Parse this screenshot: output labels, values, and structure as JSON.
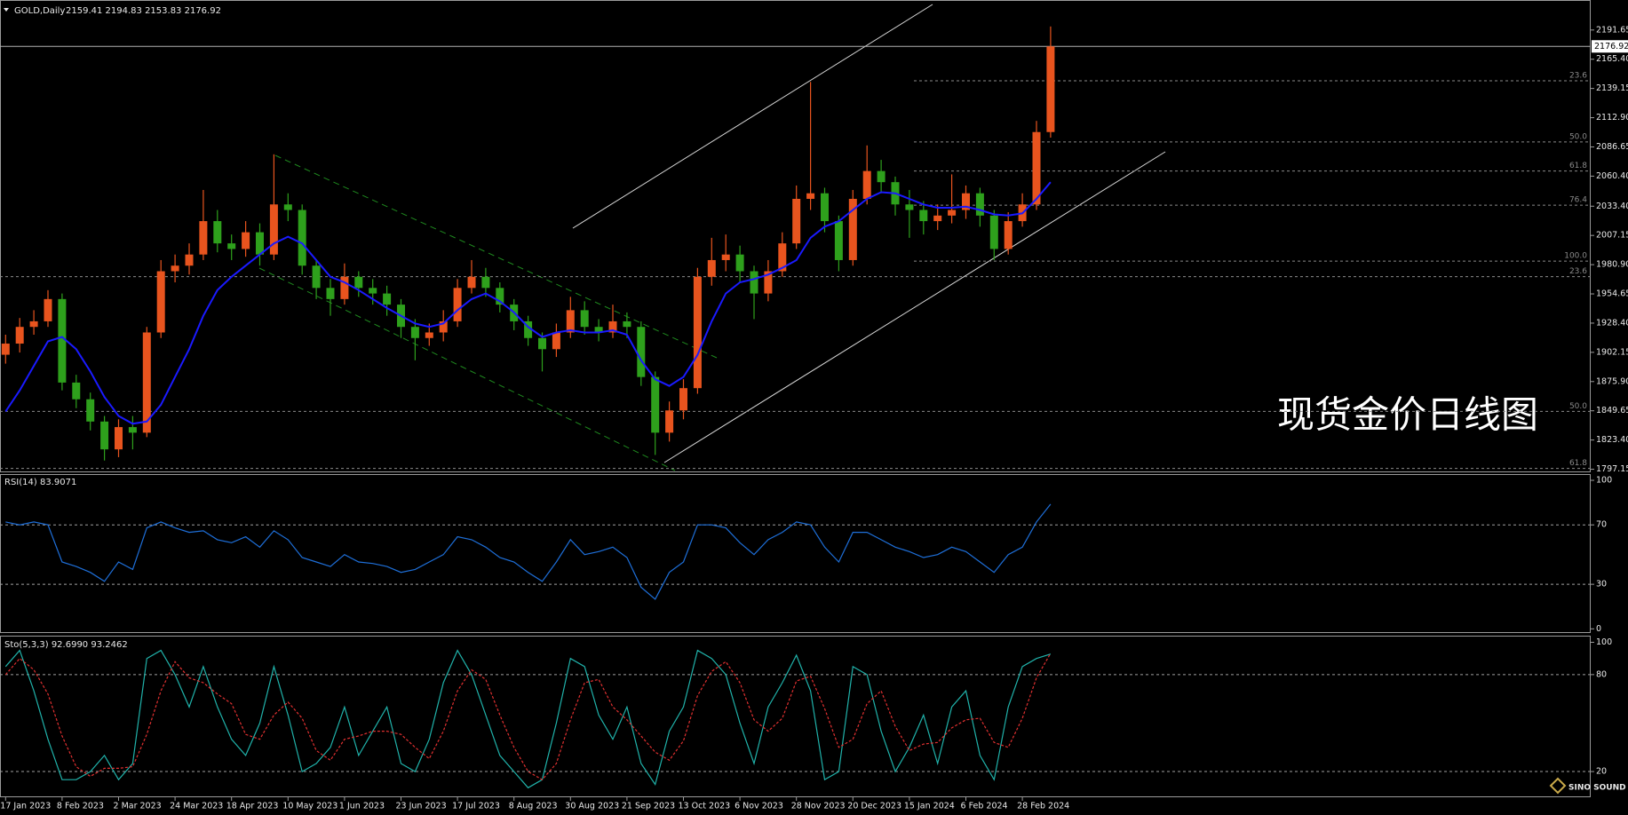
{
  "chart_data": [
    {
      "type": "candlestick",
      "title": "GOLD,Daily",
      "ohlc_label": "2159.41 2194.83 2153.83 2176.92",
      "annotation": "现货金价日线图",
      "up_color": "#e8541e",
      "down_color": "#2ea01c",
      "categories": [
        "17 Jan 2023",
        null,
        null,
        null,
        "8 Feb 2023",
        null,
        null,
        null,
        "2 Mar 2023",
        null,
        null,
        null,
        "24 Mar 2023",
        null,
        null,
        null,
        "18 Apr 2023",
        null,
        null,
        null,
        "10 May 2023",
        null,
        null,
        null,
        "1 Jun 2023",
        null,
        null,
        null,
        "23 Jun 2023",
        null,
        null,
        null,
        "17 Jul 2023",
        null,
        null,
        null,
        "8 Aug 2023",
        null,
        null,
        null,
        "30 Aug 2023",
        null,
        null,
        null,
        "21 Sep 2023",
        null,
        null,
        null,
        "13 Oct 2023",
        null,
        null,
        null,
        "6 Nov 2023",
        null,
        null,
        null,
        "28 Nov 2023",
        null,
        null,
        null,
        "20 Dec 2023",
        null,
        null,
        null,
        "15 Jan 2024",
        null,
        null,
        null,
        "6 Feb 2024",
        null,
        null,
        null,
        "28 Feb 2024",
        null,
        null
      ],
      "open": [
        1900,
        1910,
        1925,
        1930,
        1950,
        1875,
        1860,
        1840,
        1815,
        1835,
        1830,
        1920,
        1975,
        1980,
        1990,
        2020,
        2000,
        1995,
        2010,
        1990,
        2035,
        2030,
        1980,
        1960,
        1950,
        1970,
        1960,
        1955,
        1945,
        1925,
        1915,
        1920,
        1930,
        1960,
        1970,
        1960,
        1945,
        1930,
        1915,
        1905,
        1920,
        1940,
        1925,
        1920,
        1930,
        1925,
        1880,
        1830,
        1850,
        1870,
        1970,
        1985,
        1990,
        1975,
        1955,
        1975,
        2000,
        2040,
        2045,
        2020,
        1985,
        2040,
        2065,
        2055,
        2035,
        2030,
        2020,
        2025,
        2030,
        2045,
        2025,
        1995,
        2020,
        2035,
        2100
      ],
      "high": [
        1918,
        1933,
        1940,
        1958,
        1955,
        1882,
        1866,
        1845,
        1842,
        1845,
        1925,
        1985,
        1990,
        2000,
        2048,
        2030,
        2008,
        2020,
        2018,
        2080,
        2045,
        2035,
        1985,
        1968,
        1982,
        1975,
        1968,
        1962,
        1950,
        1932,
        1928,
        1940,
        1968,
        1985,
        1978,
        1965,
        1950,
        1935,
        1920,
        1928,
        1952,
        1948,
        1932,
        1945,
        1938,
        1930,
        1885,
        1858,
        1878,
        1978,
        2005,
        2008,
        1998,
        1980,
        1985,
        2010,
        2052,
        2145,
        2050,
        2025,
        2048,
        2088,
        2075,
        2060,
        2048,
        2038,
        2035,
        2062,
        2052,
        2050,
        2030,
        2028,
        2045,
        2110,
        2194.83
      ],
      "low": [
        1892,
        1902,
        1918,
        1925,
        1868,
        1852,
        1832,
        1805,
        1808,
        1815,
        1826,
        1915,
        1965,
        1972,
        1985,
        1992,
        1985,
        1988,
        1980,
        1985,
        2020,
        1972,
        1950,
        1935,
        1945,
        1952,
        1945,
        1935,
        1915,
        1895,
        1908,
        1912,
        1925,
        1955,
        1952,
        1938,
        1922,
        1908,
        1885,
        1898,
        1915,
        1918,
        1912,
        1915,
        1915,
        1872,
        1810,
        1822,
        1842,
        1865,
        1962,
        1975,
        1965,
        1932,
        1948,
        1970,
        1995,
        2030,
        2010,
        1975,
        1980,
        2035,
        2045,
        2025,
        2005,
        2008,
        2012,
        2018,
        2022,
        2015,
        1985,
        1990,
        2015,
        2030,
        2095
      ],
      "close": [
        1910,
        1925,
        1930,
        1950,
        1875,
        1860,
        1840,
        1815,
        1835,
        1830,
        1920,
        1975,
        1980,
        1990,
        2020,
        2000,
        1995,
        2010,
        1990,
        2035,
        2030,
        1980,
        1960,
        1950,
        1970,
        1960,
        1955,
        1945,
        1925,
        1915,
        1920,
        1930,
        1960,
        1970,
        1960,
        1945,
        1930,
        1915,
        1905,
        1920,
        1940,
        1925,
        1920,
        1930,
        1925,
        1880,
        1830,
        1850,
        1870,
        1970,
        1985,
        1990,
        1975,
        1955,
        1975,
        2000,
        2040,
        2045,
        2020,
        1985,
        2040,
        2065,
        2055,
        2035,
        2030,
        2020,
        2025,
        2030,
        2045,
        2025,
        1995,
        2020,
        2035,
        2100,
        2176.92
      ],
      "ma": {
        "color": "#1a1aff",
        "values": [
          1849,
          1868,
          1890,
          1912,
          1916,
          1905,
          1885,
          1862,
          1845,
          1838,
          1840,
          1855,
          1880,
          1905,
          1935,
          1958,
          1970,
          1980,
          1990,
          2000,
          2006,
          2000,
          1985,
          1970,
          1965,
          1958,
          1950,
          1942,
          1935,
          1928,
          1925,
          1928,
          1940,
          1950,
          1955,
          1948,
          1938,
          1925,
          1916,
          1920,
          1922,
          1920,
          1920,
          1922,
          1918,
          1895,
          1878,
          1872,
          1880,
          1900,
          1930,
          1955,
          1965,
          1968,
          1972,
          1978,
          1985,
          2005,
          2015,
          2020,
          2030,
          2040,
          2046,
          2045,
          2040,
          2035,
          2032,
          2032,
          2033,
          2030,
          2026,
          2025,
          2027,
          2040,
          2055
        ]
      },
      "ylim": [
        1794.4,
        2218.6
      ],
      "yticks": [
        2191.65,
        {
          "value": 2165.4,
          "label": "2165.40"
        },
        2139.15,
        {
          "value": 2112.9,
          "label": "2112.90"
        },
        2086.65,
        {
          "value": 2060.4,
          "label": "2060.40"
        },
        {
          "value": 2033.4,
          "label": "2033.40"
        },
        2007.15,
        {
          "value": 1980.9,
          "label": "1980.90"
        },
        1954.65,
        {
          "value": 1928.4,
          "label": "1928.40"
        },
        1902.15,
        {
          "value": 1875.9,
          "label": "1875.90"
        },
        1849.65,
        {
          "value": 1823.4,
          "label": "1823.40"
        },
        1797.15
      ],
      "last_price": 2176.92,
      "fib_recent": [
        {
          "value": 2146.0,
          "label": "23.6"
        },
        {
          "value": 2091.1,
          "label": "50.0"
        },
        {
          "value": 2065.0,
          "label": "61.8"
        },
        {
          "value": 2034.3,
          "label": "76.4"
        },
        {
          "value": 1984.1,
          "label": "100.0"
        }
      ],
      "fib_wide": [
        {
          "value": 1970.1,
          "label": "23.6"
        },
        {
          "value": 1849.1,
          "label": "50.0"
        },
        {
          "value": 1797.9,
          "label": "61.8"
        }
      ]
    },
    {
      "type": "line",
      "title": "RSI(14) 83.9071",
      "color": "#1e6fd9",
      "values": [
        72,
        70,
        72,
        70,
        45,
        42,
        38,
        32,
        45,
        40,
        68,
        72,
        68,
        65,
        66,
        60,
        58,
        62,
        55,
        66,
        60,
        48,
        45,
        42,
        50,
        45,
        44,
        42,
        38,
        40,
        45,
        50,
        62,
        60,
        55,
        48,
        45,
        38,
        32,
        45,
        60,
        50,
        52,
        55,
        48,
        28,
        20,
        38,
        45,
        70,
        70,
        68,
        58,
        50,
        60,
        65,
        72,
        70,
        55,
        45,
        65,
        65,
        60,
        55,
        52,
        48,
        50,
        55,
        52,
        45,
        38,
        50,
        55,
        72,
        83.9071
      ],
      "ylim": [
        -2.8,
        104.2
      ],
      "yticks": [
        0,
        30,
        70,
        100
      ],
      "levels": [
        30,
        70
      ]
    },
    {
      "type": "line",
      "title": "Sto(5,3,3) 92.6990 93.2462",
      "series": [
        {
          "color": "#20b2aa",
          "style": "solid",
          "values": [
            85,
            95,
            70,
            40,
            15,
            15,
            20,
            30,
            15,
            25,
            90,
            95,
            80,
            60,
            85,
            60,
            40,
            30,
            50,
            85,
            55,
            20,
            25,
            35,
            60,
            30,
            45,
            60,
            25,
            20,
            40,
            75,
            95,
            80,
            55,
            30,
            20,
            10,
            15,
            50,
            90,
            85,
            55,
            40,
            60,
            25,
            12,
            45,
            60,
            95,
            90,
            80,
            50,
            25,
            60,
            75,
            92,
            70,
            15,
            20,
            85,
            80,
            45,
            20,
            35,
            55,
            25,
            60,
            70,
            30,
            15,
            60,
            85,
            90,
            92.699
          ]
        },
        {
          "color": "#e03030",
          "style": "dashed",
          "values": [
            80,
            90,
            83,
            68,
            42,
            23,
            17,
            22,
            22,
            23,
            43,
            70,
            88,
            78,
            75,
            68,
            62,
            43,
            40,
            55,
            63,
            53,
            33,
            27,
            40,
            42,
            45,
            45,
            43,
            35,
            28,
            45,
            70,
            83,
            77,
            55,
            35,
            20,
            15,
            25,
            52,
            75,
            77,
            60,
            52,
            42,
            32,
            27,
            39,
            67,
            82,
            88,
            75,
            52,
            45,
            53,
            76,
            79,
            59,
            35,
            40,
            62,
            70,
            48,
            33,
            37,
            38,
            47,
            52,
            53,
            38,
            35,
            53,
            78,
            93.2462
          ]
        }
      ],
      "ylim": [
        4.1,
        104.1
      ],
      "yticks": [
        20,
        80,
        100
      ],
      "levels": [
        20,
        80
      ]
    }
  ],
  "watermark": {
    "brand": "SINO SOUND"
  }
}
